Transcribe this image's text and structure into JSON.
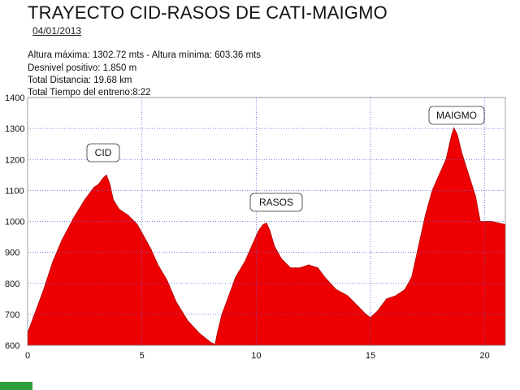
{
  "header": {
    "title": "TRAYECTO CID-RASOS DE CATI-MAIGMO",
    "date": "04/01/2013"
  },
  "stats": [
    "Altura máxima: 1302.72 mts - Altura mínima: 603.36 mts",
    "Desnivel positivo: 1.850 m",
    "Total Distancia: 19.68 km",
    "Total Tiempo del entreno:8:22"
  ],
  "colors": {
    "fill": "#ee0000",
    "grid": "#5a5ad8",
    "footer": "#2e9e3e"
  },
  "chart_data": {
    "type": "area",
    "title": "TRAYECTO CID-RASOS DE CATI-MAIGMO",
    "xlabel": "",
    "ylabel": "",
    "xlim": [
      0,
      20.9
    ],
    "ylim": [
      600,
      1400
    ],
    "grid": true,
    "x_ticks": [
      "0",
      "5",
      "10",
      "15",
      "20"
    ],
    "y_ticks": [
      "600",
      "700",
      "800",
      "900",
      "1000",
      "1100",
      "1200",
      "1300",
      "1400"
    ],
    "series": [
      {
        "x": [
          0,
          0.3,
          0.7,
          1.1,
          1.5,
          2,
          2.5,
          2.9,
          3.1,
          3.3,
          3.45,
          3.6,
          3.75,
          4,
          4.4,
          4.8,
          5.1,
          5.4,
          5.7,
          6.1,
          6.5,
          7,
          7.5,
          8,
          8.2,
          8.3,
          8.5,
          8.8,
          9.1,
          9.5,
          9.8,
          10.1,
          10.3,
          10.45,
          10.6,
          10.8,
          11.1,
          11.5,
          11.9,
          12.3,
          12.7,
          13,
          13.5,
          14,
          14.4,
          14.8,
          15,
          15.3,
          15.7,
          16.1,
          16.5,
          16.8,
          17.1,
          17.4,
          17.7,
          18,
          18.3,
          18.55,
          18.65,
          18.8,
          19,
          19.3,
          19.6,
          19.8,
          20,
          20.3,
          20.6,
          20.9
        ],
        "y": [
          640,
          700,
          780,
          870,
          940,
          1010,
          1070,
          1110,
          1120,
          1140,
          1150,
          1120,
          1070,
          1040,
          1020,
          990,
          950,
          910,
          860,
          810,
          740,
          680,
          640,
          610,
          603,
          640,
          700,
          760,
          820,
          870,
          920,
          970,
          990,
          995,
          970,
          920,
          880,
          850,
          850,
          860,
          850,
          820,
          780,
          760,
          730,
          700,
          690,
          710,
          750,
          760,
          780,
          820,
          920,
          1020,
          1100,
          1150,
          1200,
          1280,
          1302,
          1280,
          1220,
          1150,
          1080,
          1000,
          1000,
          1000,
          995,
          990
        ]
      }
    ],
    "annotations": [
      {
        "label": "CID",
        "x": 3.3
      },
      {
        "label": "RASOS",
        "x": 10.45
      },
      {
        "label": "MAIGMO",
        "x": 18.65
      }
    ]
  }
}
